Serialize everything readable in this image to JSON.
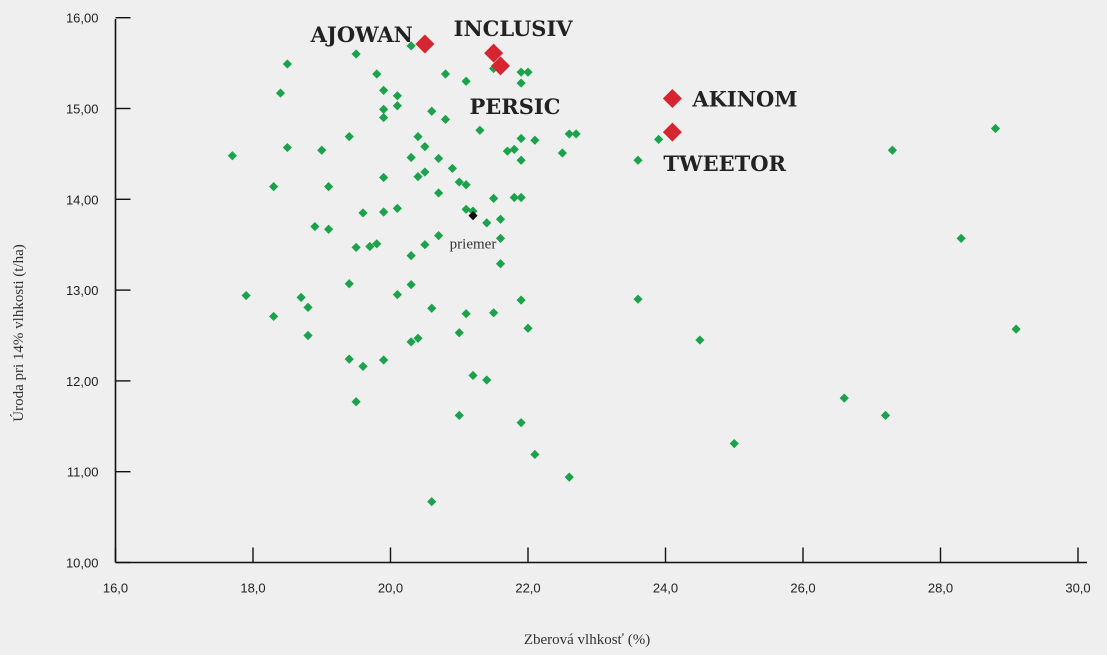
{
  "colors": {
    "background": "#efefef",
    "axis": "#111111",
    "point": "#1aa34a",
    "highlight": "#d42530",
    "example": "#111111"
  },
  "chart_data": {
    "type": "scatter",
    "title": "",
    "xlabel": "Zberová vlhkosť (%)",
    "ylabel": "Úroda pri 14% vlhkosti (t/ha)",
    "xlim": [
      16,
      30
    ],
    "ylim": [
      10,
      16
    ],
    "x_ticks": [
      "16,0",
      "18,0",
      "20,0",
      "22,0",
      "24,0",
      "26,0",
      "28,0",
      "30,0"
    ],
    "y_ticks": [
      "10,00",
      "11,00",
      "12,00",
      "13,00",
      "14,00",
      "15,00",
      "16,00"
    ],
    "grid": false,
    "series": [
      {
        "role": "other hybrids",
        "color": "#1aa34a",
        "points": [
          [
            17.7,
            14.48
          ],
          [
            17.9,
            12.94
          ],
          [
            18.3,
            14.14
          ],
          [
            18.3,
            12.71
          ],
          [
            18.4,
            15.17
          ],
          [
            18.5,
            15.49
          ],
          [
            18.5,
            14.57
          ],
          [
            18.7,
            12.92
          ],
          [
            18.8,
            12.81
          ],
          [
            18.8,
            12.5
          ],
          [
            18.9,
            13.7
          ],
          [
            19.0,
            14.54
          ],
          [
            19.1,
            14.14
          ],
          [
            19.1,
            13.67
          ],
          [
            19.4,
            14.69
          ],
          [
            19.4,
            13.07
          ],
          [
            19.4,
            12.24
          ],
          [
            19.5,
            15.6
          ],
          [
            19.5,
            13.47
          ],
          [
            19.5,
            11.77
          ],
          [
            19.6,
            13.85
          ],
          [
            19.6,
            12.16
          ],
          [
            19.7,
            13.48
          ],
          [
            19.8,
            15.38
          ],
          [
            19.8,
            13.51
          ],
          [
            19.9,
            15.2
          ],
          [
            19.9,
            14.99
          ],
          [
            19.9,
            14.9
          ],
          [
            19.9,
            14.24
          ],
          [
            19.9,
            13.86
          ],
          [
            19.9,
            12.23
          ],
          [
            20.1,
            15.14
          ],
          [
            20.1,
            15.03
          ],
          [
            20.1,
            13.9
          ],
          [
            20.1,
            12.95
          ],
          [
            20.3,
            15.69
          ],
          [
            20.3,
            14.46
          ],
          [
            20.3,
            13.38
          ],
          [
            20.3,
            13.06
          ],
          [
            20.3,
            12.43
          ],
          [
            20.4,
            14.69
          ],
          [
            20.4,
            14.25
          ],
          [
            20.4,
            12.47
          ],
          [
            20.5,
            14.58
          ],
          [
            20.5,
            14.3
          ],
          [
            20.5,
            13.5
          ],
          [
            20.6,
            14.97
          ],
          [
            20.6,
            12.8
          ],
          [
            20.6,
            10.67
          ],
          [
            20.7,
            14.45
          ],
          [
            20.7,
            14.07
          ],
          [
            20.7,
            13.6
          ],
          [
            20.8,
            15.38
          ],
          [
            20.8,
            14.88
          ],
          [
            20.9,
            14.34
          ],
          [
            21.0,
            14.19
          ],
          [
            21.0,
            12.53
          ],
          [
            21.0,
            11.62
          ],
          [
            21.1,
            15.3
          ],
          [
            21.1,
            14.16
          ],
          [
            21.1,
            13.89
          ],
          [
            21.1,
            12.74
          ],
          [
            21.2,
            13.87
          ],
          [
            21.2,
            12.06
          ],
          [
            21.3,
            14.76
          ],
          [
            21.4,
            13.74
          ],
          [
            21.4,
            12.01
          ],
          [
            21.5,
            15.44
          ],
          [
            21.5,
            14.01
          ],
          [
            21.5,
            12.75
          ],
          [
            21.6,
            13.78
          ],
          [
            21.6,
            13.57
          ],
          [
            21.6,
            13.29
          ],
          [
            21.7,
            14.53
          ],
          [
            21.8,
            14.55
          ],
          [
            21.8,
            14.02
          ],
          [
            21.9,
            15.4
          ],
          [
            21.9,
            15.28
          ],
          [
            21.9,
            14.67
          ],
          [
            21.9,
            14.43
          ],
          [
            21.9,
            14.02
          ],
          [
            21.9,
            12.89
          ],
          [
            21.9,
            11.54
          ],
          [
            22.0,
            15.4
          ],
          [
            22.0,
            12.58
          ],
          [
            22.1,
            14.65
          ],
          [
            22.1,
            11.19
          ],
          [
            22.5,
            14.51
          ],
          [
            22.6,
            14.72
          ],
          [
            22.6,
            10.94
          ],
          [
            22.7,
            14.72
          ],
          [
            23.6,
            14.43
          ],
          [
            23.6,
            12.9
          ],
          [
            23.9,
            14.66
          ],
          [
            24.5,
            12.45
          ],
          [
            25.0,
            11.31
          ],
          [
            26.6,
            11.81
          ],
          [
            27.2,
            11.62
          ],
          [
            27.3,
            14.54
          ],
          [
            28.3,
            13.57
          ],
          [
            28.8,
            14.78
          ],
          [
            29.1,
            12.57
          ]
        ]
      }
    ],
    "highlighted": [
      {
        "label": "AJOWAN",
        "x": 20.5,
        "y": 15.71
      },
      {
        "label": "INCLUSIV",
        "x": 21.5,
        "y": 15.61
      },
      {
        "label": "PERSIC",
        "x": 21.6,
        "y": 15.47
      },
      {
        "label": "AKINOM",
        "x": 24.1,
        "y": 15.11
      },
      {
        "label": "TWEETOR",
        "x": 24.1,
        "y": 14.74
      }
    ],
    "example": {
      "label": "priemer",
      "x": 21.2,
      "y": 13.82
    }
  }
}
